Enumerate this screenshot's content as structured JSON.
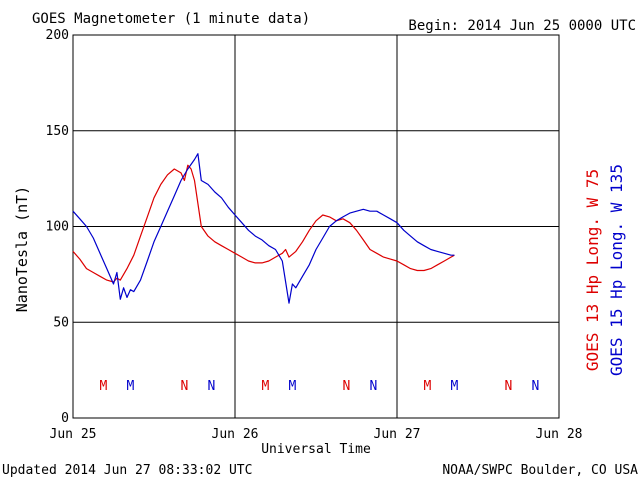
{
  "header": {
    "title": "GOES Magnetometer (1 minute data)",
    "begin": "Begin:  2014 Jun 25 0000 UTC"
  },
  "footer": {
    "updated": "Updated 2014 Jun 27 08:33:02 UTC",
    "credit": "NOAA/SWPC Boulder, CO USA"
  },
  "chart_data": {
    "type": "line",
    "ylabel": "NanoTesla (nT)",
    "xlabel": "Universal Time",
    "ylim": [
      0,
      200
    ],
    "xlim": [
      0,
      72
    ],
    "grid": true,
    "yticks": [
      0,
      50,
      100,
      150,
      200
    ],
    "xticks": [
      {
        "x": 0,
        "label": "Jun 25"
      },
      {
        "x": 24,
        "label": "Jun 26"
      },
      {
        "x": 48,
        "label": "Jun 27"
      },
      {
        "x": 72,
        "label": "Jun 28"
      }
    ],
    "colors": {
      "goes13": "#dd0000",
      "goes15": "#0000cc"
    },
    "series": [
      {
        "name": "GOES 13 Hp  Long. W 75",
        "color": "#dd0000",
        "x": [
          0,
          1,
          2,
          3,
          4,
          5,
          6,
          6.5,
          7,
          8,
          9,
          10,
          11,
          12,
          13,
          14,
          15,
          16,
          16.5,
          17,
          17.5,
          18,
          18.5,
          19,
          20,
          21,
          22,
          23,
          24,
          25,
          26,
          27,
          28,
          29,
          30,
          31,
          31.5,
          32,
          33,
          34,
          35,
          36,
          37,
          38,
          39,
          40,
          41,
          42,
          43,
          44,
          45,
          46,
          47,
          48,
          49,
          50,
          51,
          52,
          53,
          54,
          55,
          56,
          56.5
        ],
        "y": [
          87,
          83,
          78,
          76,
          74,
          72,
          71,
          73,
          72,
          78,
          85,
          95,
          105,
          115,
          122,
          127,
          130,
          128,
          124,
          132,
          130,
          124,
          112,
          100,
          95,
          92,
          90,
          88,
          86,
          84,
          82,
          81,
          81,
          82,
          84,
          86,
          88,
          84,
          87,
          92,
          98,
          103,
          106,
          105,
          103,
          104,
          102,
          98,
          93,
          88,
          86,
          84,
          83,
          82,
          80,
          78,
          77,
          77,
          78,
          80,
          82,
          84,
          85
        ]
      },
      {
        "name": "GOES 15 Hp  Long. W 135",
        "color": "#0000cc",
        "x": [
          0,
          1,
          2,
          3,
          4,
          5,
          6,
          6.5,
          7,
          7.5,
          8,
          8.5,
          9,
          10,
          11,
          12,
          13,
          14,
          15,
          16,
          17,
          18,
          18.5,
          19,
          20,
          21,
          22,
          23,
          24,
          25,
          26,
          27,
          28,
          29,
          30,
          31,
          32,
          32.5,
          33,
          34,
          35,
          36,
          37,
          38,
          39,
          40,
          41,
          42,
          43,
          44,
          45,
          46,
          47,
          48,
          49,
          50,
          51,
          52,
          53,
          54,
          55,
          56,
          56.5
        ],
        "y": [
          108,
          104,
          100,
          94,
          86,
          78,
          70,
          76,
          62,
          68,
          63,
          67,
          66,
          72,
          82,
          92,
          100,
          108,
          116,
          124,
          130,
          135,
          138,
          124,
          122,
          118,
          115,
          110,
          106,
          102,
          98,
          95,
          93,
          90,
          88,
          82,
          60,
          70,
          68,
          74,
          80,
          88,
          94,
          100,
          103,
          105,
          107,
          108,
          109,
          108,
          108,
          106,
          104,
          102,
          98,
          95,
          92,
          90,
          88,
          87,
          86,
          85,
          85
        ]
      }
    ],
    "markers": [
      {
        "label": "M",
        "color": "#dd0000",
        "x": 4.5
      },
      {
        "label": "M",
        "color": "#0000cc",
        "x": 8.5
      },
      {
        "label": "N",
        "color": "#dd0000",
        "x": 16.5
      },
      {
        "label": "N",
        "color": "#0000cc",
        "x": 20.5
      },
      {
        "label": "M",
        "color": "#dd0000",
        "x": 28.5
      },
      {
        "label": "M",
        "color": "#0000cc",
        "x": 32.5
      },
      {
        "label": "N",
        "color": "#dd0000",
        "x": 40.5
      },
      {
        "label": "N",
        "color": "#0000cc",
        "x": 44.5
      },
      {
        "label": "M",
        "color": "#dd0000",
        "x": 52.5
      },
      {
        "label": "M",
        "color": "#0000cc",
        "x": 56.5
      },
      {
        "label": "N",
        "color": "#dd0000",
        "x": 64.5
      },
      {
        "label": "N",
        "color": "#0000cc",
        "x": 68.5
      }
    ]
  }
}
